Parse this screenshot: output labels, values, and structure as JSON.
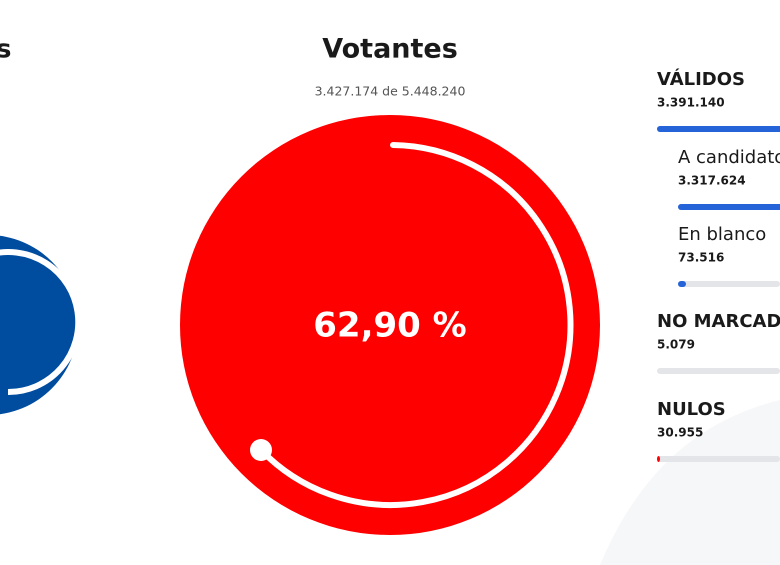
{
  "left_panel": {
    "title_fragment": "s"
  },
  "center_panel": {
    "title": "Votantes",
    "subtitle": "3.427.174 de 5.448.240",
    "percentage": "62,90 %"
  },
  "right_panel": {
    "items": [
      {
        "label": "VÁLIDOS",
        "value": "3.391.140"
      },
      {
        "label": "A candidatos",
        "value": "3.317.624"
      },
      {
        "label": "En blanco",
        "value": "73.516"
      },
      {
        "label": "NO MARCADOS",
        "value": "5.079"
      },
      {
        "label": "NULOS",
        "value": "30.955"
      }
    ]
  }
}
